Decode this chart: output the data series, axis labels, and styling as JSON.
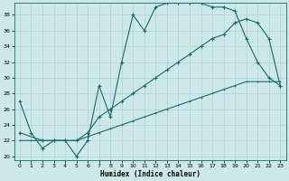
{
  "xlabel": "Humidex (Indice chaleur)",
  "xlim": [
    -0.5,
    23.5
  ],
  "ylim": [
    19.5,
    39.5
  ],
  "xticks": [
    0,
    1,
    2,
    3,
    4,
    5,
    6,
    7,
    8,
    9,
    10,
    11,
    12,
    13,
    14,
    15,
    16,
    17,
    18,
    19,
    20,
    21,
    22,
    23
  ],
  "yticks": [
    20,
    22,
    24,
    26,
    28,
    30,
    32,
    34,
    36,
    38
  ],
  "bg_color": "#cce8e8",
  "line_color": "#1a6b6b",
  "grid_color": "#aacccc",
  "curve1_x": [
    0,
    1,
    2,
    3,
    4,
    5,
    6,
    7,
    8,
    9,
    10,
    11,
    12,
    13,
    14,
    15,
    16,
    17,
    18,
    19,
    20,
    21,
    22,
    23
  ],
  "curve1_y": [
    27,
    23,
    21,
    22,
    22,
    20,
    22,
    29,
    25,
    32,
    38,
    36,
    39,
    39.5,
    39.5,
    39.5,
    39.5,
    39,
    39,
    38.5,
    35,
    32,
    30,
    29
  ],
  "curve2_x": [
    0,
    2,
    3,
    4,
    5,
    6,
    7,
    8,
    9,
    10,
    11,
    12,
    13,
    14,
    15,
    16,
    17,
    18,
    19,
    20,
    21,
    22,
    23
  ],
  "curve2_y": [
    23,
    22,
    22,
    22,
    22,
    23,
    25,
    26,
    27,
    28,
    29,
    30,
    31,
    32,
    33,
    34,
    35,
    35.5,
    37,
    37.5,
    37,
    35,
    29
  ],
  "curve3_x": [
    0,
    1,
    2,
    3,
    4,
    5,
    6,
    7,
    8,
    9,
    10,
    11,
    12,
    13,
    14,
    15,
    16,
    17,
    18,
    19,
    20,
    21,
    22,
    23
  ],
  "curve3_y": [
    22,
    22,
    22,
    22,
    22,
    22,
    22.5,
    23,
    23.5,
    24,
    24.5,
    25,
    25.5,
    26,
    26.5,
    27,
    27.5,
    28,
    28.5,
    29,
    29.5,
    29.5,
    29.5,
    29.5
  ]
}
